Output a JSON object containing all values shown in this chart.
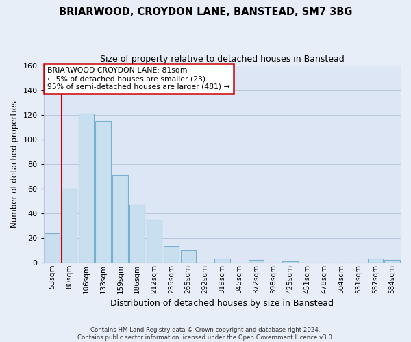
{
  "title": "BRIARWOOD, CROYDON LANE, BANSTEAD, SM7 3BG",
  "subtitle": "Size of property relative to detached houses in Banstead",
  "xlabel": "Distribution of detached houses by size in Banstead",
  "ylabel": "Number of detached properties",
  "bar_labels": [
    "53sqm",
    "80sqm",
    "106sqm",
    "133sqm",
    "159sqm",
    "186sqm",
    "212sqm",
    "239sqm",
    "265sqm",
    "292sqm",
    "319sqm",
    "345sqm",
    "372sqm",
    "398sqm",
    "425sqm",
    "451sqm",
    "478sqm",
    "504sqm",
    "531sqm",
    "557sqm",
    "584sqm"
  ],
  "bar_values": [
    24,
    60,
    121,
    115,
    71,
    47,
    35,
    13,
    10,
    0,
    3,
    0,
    2,
    0,
    1,
    0,
    0,
    0,
    0,
    3,
    2
  ],
  "bar_color": "#c8dff0",
  "bar_edge_color": "#7ab0cc",
  "vline_x_index": 1,
  "vline_color": "#cc0000",
  "annotation_title": "BRIARWOOD CROYDON LANE: 81sqm",
  "annotation_line1": "← 5% of detached houses are smaller (23)",
  "annotation_line2": "95% of semi-detached houses are larger (481) →",
  "annotation_box_color": "#ffffff",
  "annotation_box_edge": "#cc0000",
  "ylim": [
    0,
    160
  ],
  "yticks": [
    0,
    20,
    40,
    60,
    80,
    100,
    120,
    140,
    160
  ],
  "bg_color": "#e8eef8",
  "plot_bg_color": "#dce6f5",
  "grid_color": "#b8c8dc",
  "footer1": "Contains HM Land Registry data © Crown copyright and database right 2024.",
  "footer2": "Contains public sector information licensed under the Open Government Licence v3.0."
}
